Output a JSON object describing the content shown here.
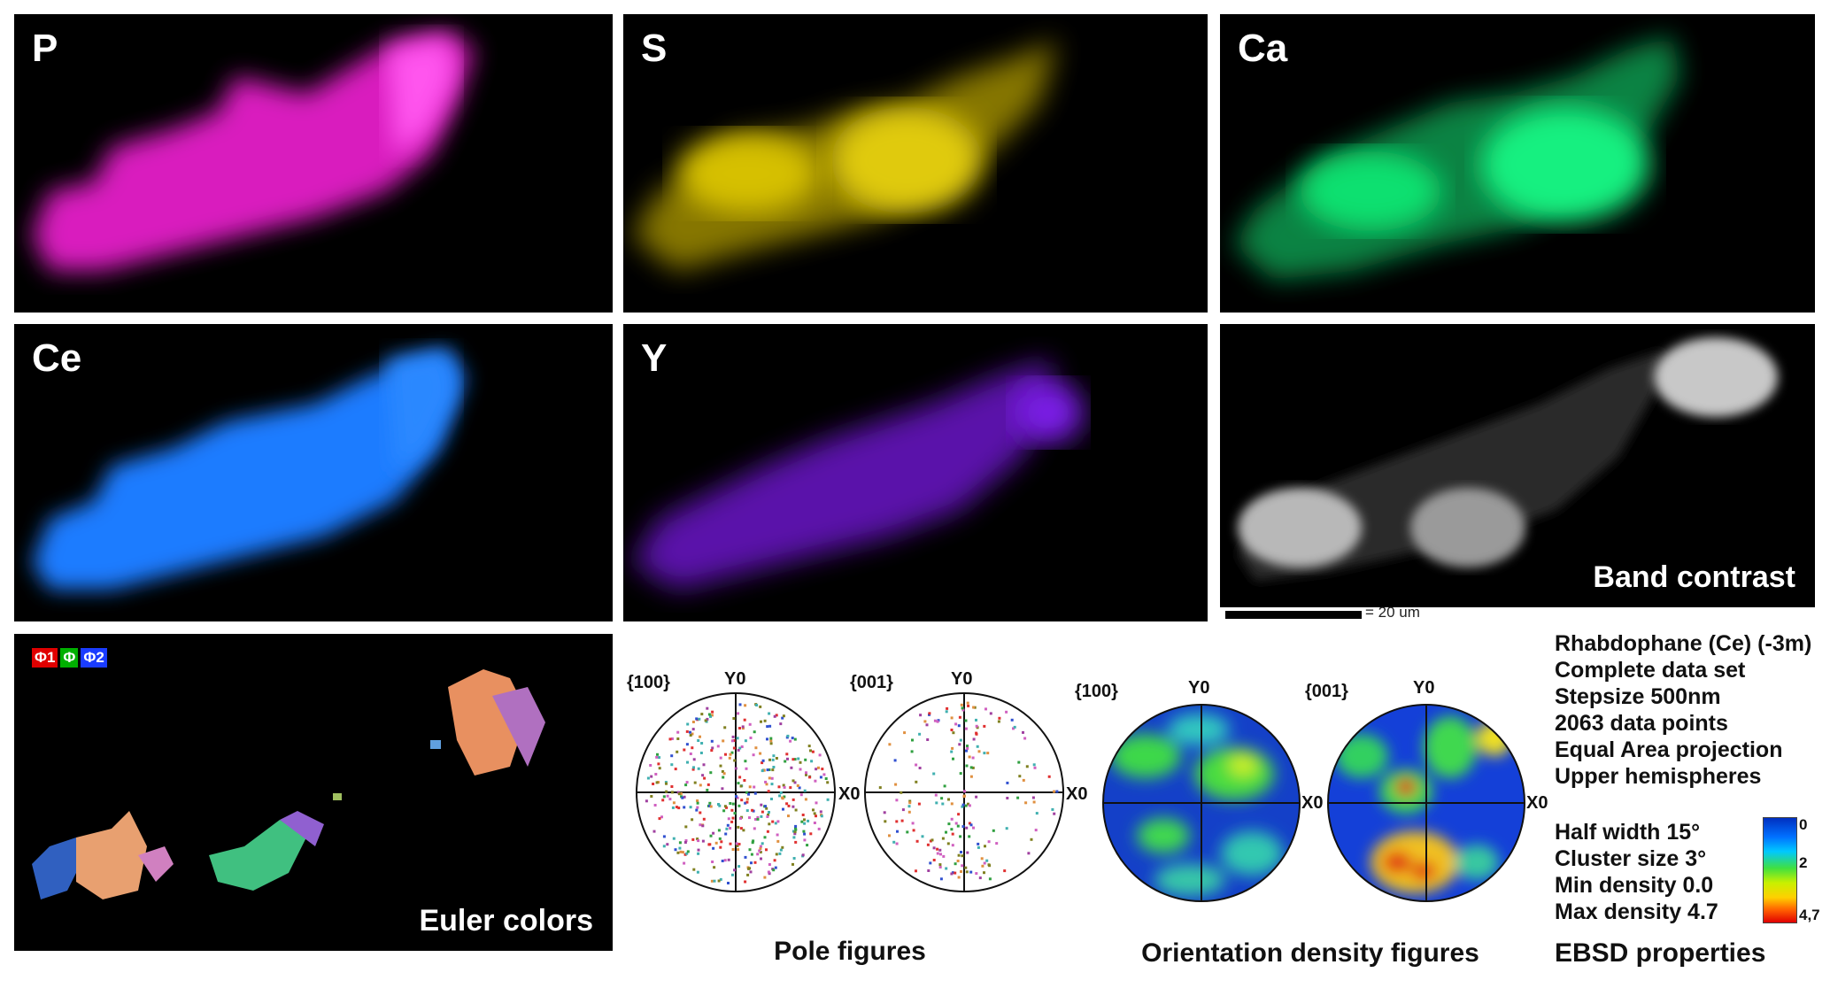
{
  "maps": [
    {
      "label": "P",
      "color": "#ff22e0"
    },
    {
      "label": "S",
      "color": "#d6c000"
    },
    {
      "label": "Ca",
      "color": "#10e070"
    },
    {
      "label": "Ce",
      "color": "#1e7cff"
    },
    {
      "label": "Y",
      "color": "#7a1ee6"
    }
  ],
  "band_contrast": {
    "label": "Band contrast"
  },
  "scale_bar": {
    "text": "= 20 um"
  },
  "euler": {
    "legend": [
      "Φ1",
      "Φ",
      "Φ2"
    ],
    "legend_colors": [
      "#e00000",
      "#00b000",
      "#1a3cff"
    ],
    "label": "Euler colors"
  },
  "pole_figures": {
    "fig1": "{100}",
    "fig2": "{001}",
    "y_label": "Y0",
    "x_label": "X0",
    "caption": "Pole figures"
  },
  "odf": {
    "fig1": "{100}",
    "fig2": "{001}",
    "y_label": "Y0",
    "x_label": "X0",
    "caption": "Orientation density figures"
  },
  "ebsd": {
    "lines": [
      "Rhabdophane (Ce) (-3m)",
      "Complete data set",
      "Stepsize 500nm",
      "2063 data points",
      "Equal Area projection",
      "Upper hemispheres"
    ],
    "lines2": [
      "Half width 15°",
      "Cluster size 3°",
      "Min density 0.0",
      "Max density 4.7"
    ],
    "colorbar_ticks": [
      "0",
      "2",
      "4,7"
    ],
    "caption": "EBSD properties"
  }
}
